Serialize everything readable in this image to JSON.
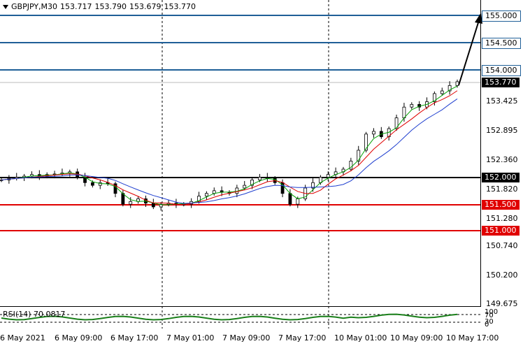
{
  "header": {
    "symbol": "GBPJPY,M30",
    "open": "153.717",
    "high": "153.790",
    "low": "153.679",
    "close": "153.770"
  },
  "price_axis": [
    "155.000",
    "154.500",
    "154.000",
    "153.770",
    "153.425",
    "152.895",
    "152.360",
    "152.000",
    "151.820",
    "151.500",
    "151.280",
    "151.000",
    "150.740",
    "150.200",
    "149.675"
  ],
  "levels": {
    "blue": [
      "155.000",
      "154.500",
      "154.000"
    ],
    "black": "152.000",
    "red": [
      "151.500",
      "151.000"
    ],
    "current": "153.770"
  },
  "rsi": {
    "label": "RSI(14) 70.0817",
    "axis_top": "100",
    "axis_70": "70",
    "axis_30": "30",
    "axis_bottom": "0"
  },
  "time_axis": [
    "6 May 2021",
    "6 May 09:00",
    "6 May 17:00",
    "7 May 01:00",
    "7 May 09:00",
    "7 May 17:00",
    "10 May 01:00",
    "10 May 09:00",
    "10 May 17:00"
  ],
  "colors": {
    "blue_level": "#1f5f97",
    "red_level": "#e00000",
    "black_level": "#000000",
    "ma_fast": "#00a000",
    "ma_mid": "#e00000",
    "ma_slow": "#1f3fcf",
    "rsi_line": "#1a7f1a"
  },
  "chart_data": {
    "type": "candlestick",
    "symbol": "GBPJPY",
    "timeframe": "M30",
    "ylim": [
      149.675,
      155.0
    ],
    "close_series": [
      151.95,
      151.98,
      152.0,
      152.02,
      152.05,
      152.02,
      152.05,
      152.06,
      152.08,
      152.1,
      152.0,
      151.9,
      151.85,
      151.9,
      151.88,
      151.7,
      151.5,
      151.55,
      151.6,
      151.52,
      151.45,
      151.5,
      151.52,
      151.5,
      151.5,
      151.55,
      151.65,
      151.7,
      151.75,
      151.72,
      151.7,
      151.8,
      151.85,
      151.95,
      152.0,
      151.98,
      151.9,
      151.7,
      151.5,
      151.6,
      151.8,
      151.9,
      152.0,
      152.05,
      152.1,
      152.15,
      152.3,
      152.5,
      152.8,
      152.85,
      152.75,
      152.9,
      153.1,
      153.3,
      153.35,
      153.3,
      153.4,
      153.55,
      153.6,
      153.7,
      153.77
    ]
  }
}
